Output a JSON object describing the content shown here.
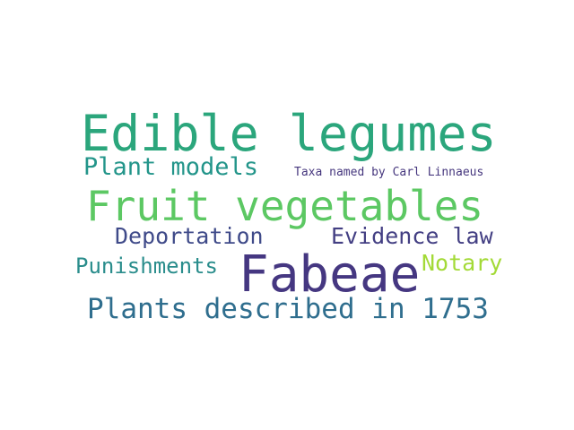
{
  "word_cloud": {
    "words": [
      {
        "text": "Edible legumes",
        "color": "#2ba67c"
      },
      {
        "text": "Plant models",
        "color": "#23958a"
      },
      {
        "text": "Taxa named by Carl Linnaeus",
        "color": "#46377e"
      },
      {
        "text": "Fruit vegetables",
        "color": "#5cc863"
      },
      {
        "text": "Deportation",
        "color": "#3f4a89"
      },
      {
        "text": "Evidence law",
        "color": "#433f83"
      },
      {
        "text": "Punishments",
        "color": "#2a8d8c"
      },
      {
        "text": "Notary",
        "color": "#a3da37"
      },
      {
        "text": "Fabeae",
        "color": "#453781"
      },
      {
        "text": "Plants described in 1753",
        "color": "#2f6e8e"
      }
    ]
  }
}
